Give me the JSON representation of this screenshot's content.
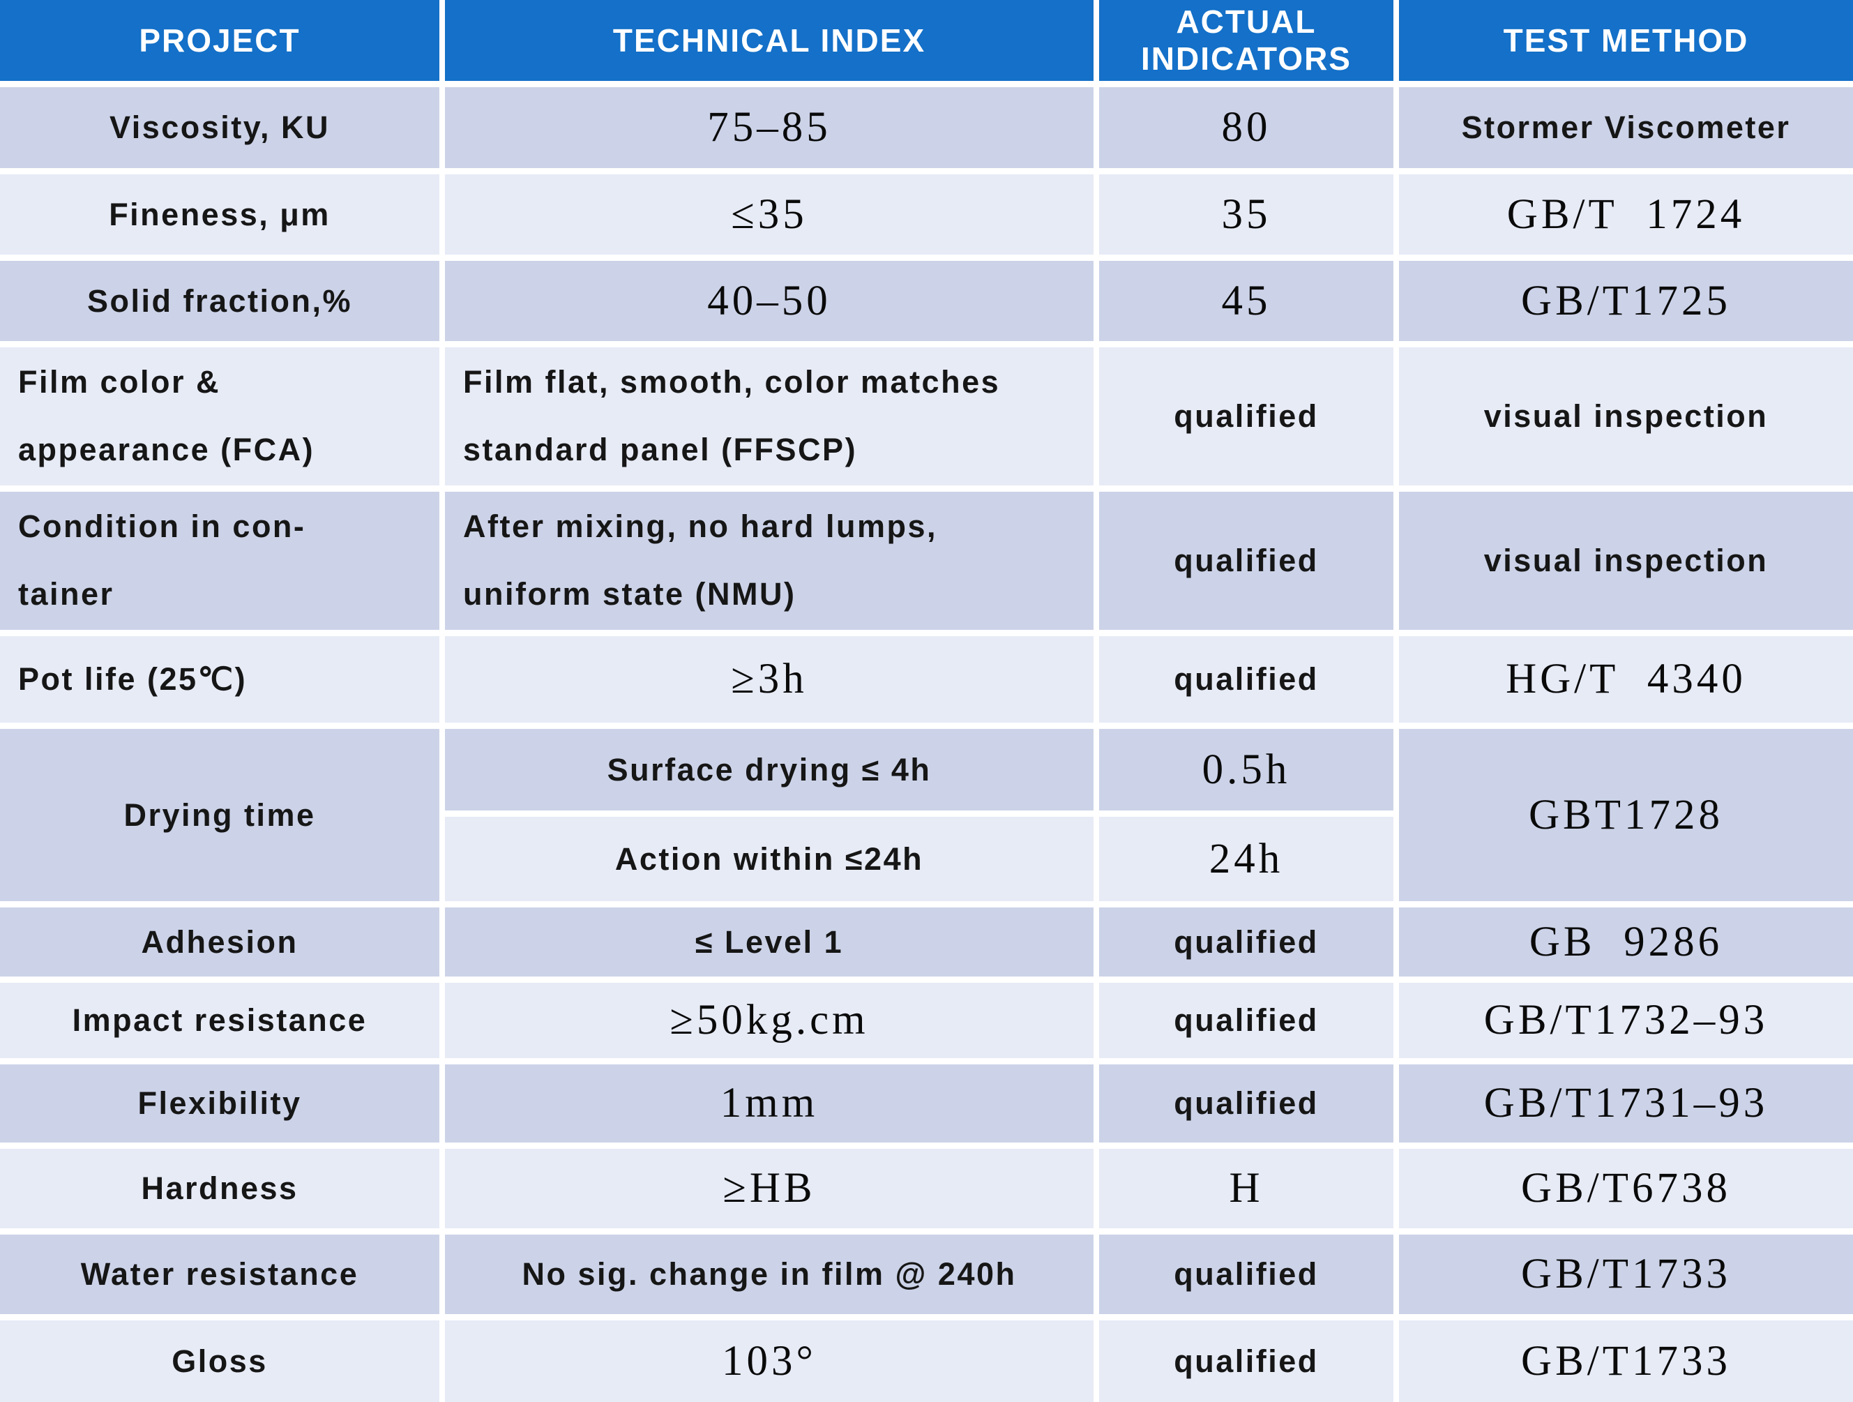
{
  "colors": {
    "header_bg": "#1470c8",
    "header_text": "#ffffff",
    "row_dark": "#ccd3e8",
    "row_light": "#e7ebf6",
    "body_text": "#161616"
  },
  "header": {
    "project": "PROJECT",
    "technical_index": "TECHNICAL INDEX",
    "actual_indicators": "ACTUAL\nINDICATORS",
    "test_method": "TEST METHOD"
  },
  "rows": [
    {
      "project": "Viscosity, KU",
      "index": "75–85",
      "actual": "80",
      "method": "Stormer Viscometer"
    },
    {
      "project": "Fineness, μm",
      "index": "≤35",
      "actual": "35",
      "method": "GB/T  1724"
    },
    {
      "project": "Solid fraction,%",
      "index": "40–50",
      "actual": "45",
      "method": "GB/T1725"
    },
    {
      "project": "Film color &\nappearance (FCA)",
      "index": "Film flat, smooth, color matches\nstandard panel (FFSCP)",
      "actual": "qualified",
      "method": "visual inspection"
    },
    {
      "project": "Condition in con-\ntainer",
      "index": "After mixing, no hard lumps,\nuniform state (NMU)",
      "actual": "qualified",
      "method": "visual inspection"
    },
    {
      "project": "Pot life (25℃)",
      "index": "≥3h",
      "actual": "qualified",
      "method": "HG/T  4340"
    },
    {
      "project": "Drying time",
      "sub1": {
        "index": "Surface drying ≤ 4h",
        "actual": "0.5h"
      },
      "sub2": {
        "index": "Action within ≤24h",
        "actual": "24h"
      },
      "method": "GBT1728"
    },
    {
      "project": "Adhesion",
      "index": "≤ Level 1",
      "actual": "qualified",
      "method": "GB  9286"
    },
    {
      "project": "Impact resistance",
      "index": "≥50kg.cm",
      "actual": "qualified",
      "method": "GB/T1732–93"
    },
    {
      "project": "Flexibility",
      "index": "1mm",
      "actual": "qualified",
      "method": "GB/T1731–93"
    },
    {
      "project": "Hardness",
      "index": "≥HB",
      "actual": "H",
      "method": "GB/T6738"
    },
    {
      "project": "Water resistance",
      "index": "No sig. change in film @ 240h",
      "actual": "qualified",
      "method": "GB/T1733"
    },
    {
      "project": "Gloss",
      "index": "103°",
      "actual": "qualified",
      "method": "GB/T1733"
    }
  ]
}
